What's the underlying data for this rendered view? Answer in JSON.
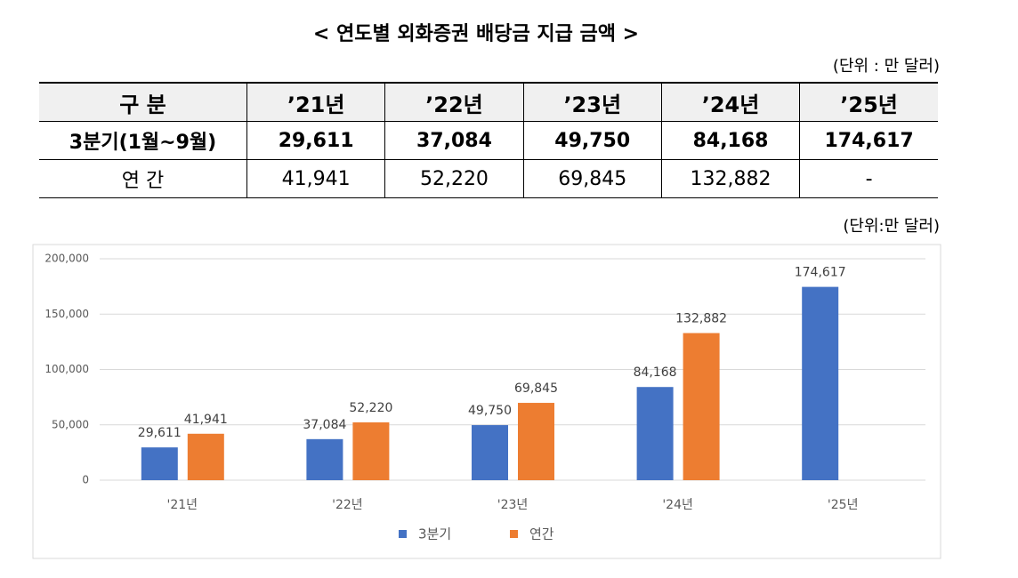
{
  "title": "< 연도별 외화증권 배당금 지급 금액 >",
  "table_unit": "(단위 : 만 달러)",
  "table": {
    "header": [
      "구 분",
      "’21년",
      "’22년",
      "’23년",
      "’24년",
      "’25년"
    ],
    "rows": [
      [
        "3분기(1월~9월)",
        "29,611",
        "37,084",
        "49,750",
        "84,168",
        "174,617"
      ],
      [
        "연 간",
        "41,941",
        "52,220",
        "69,845",
        "132,882",
        "-"
      ]
    ]
  },
  "chart_unit": "(단위:만 달러)",
  "chart_data": {
    "type": "bar",
    "categories": [
      "'21년",
      "'22년",
      "'23년",
      "'24년",
      "'25년"
    ],
    "series": [
      {
        "name": "3분기",
        "color": "#4472c4",
        "values": [
          29611,
          37084,
          49750,
          84168,
          174617
        ],
        "value_labels": [
          "29,611",
          "37,084",
          "49,750",
          "84,168",
          "174,617"
        ]
      },
      {
        "name": "연간",
        "color": "#ed7d31",
        "values": [
          41941,
          52220,
          69845,
          132882,
          null
        ],
        "value_labels": [
          "41,941",
          "52,220",
          "69,845",
          "132,882",
          null
        ]
      }
    ],
    "ylim": [
      0,
      200000
    ],
    "yticks": [
      0,
      {
        "value": 50000,
        "label": "50,000"
      },
      {
        "value": 100000,
        "label": "100,000"
      },
      {
        "value": 150000,
        "label": "150,000"
      },
      {
        "value": 200000,
        "label": "200,000"
      }
    ],
    "grid": true,
    "legend": "bottom"
  }
}
